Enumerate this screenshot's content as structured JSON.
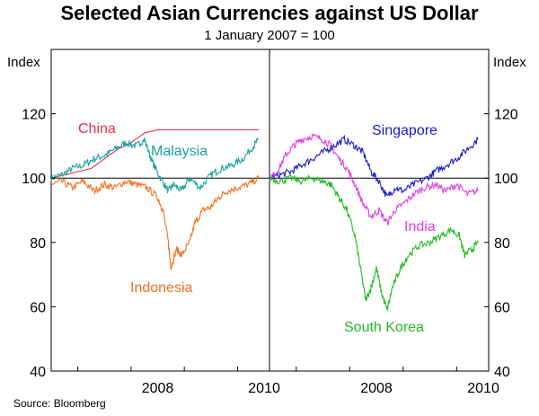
{
  "title": "Selected Asian Currencies against US Dollar",
  "subtitle": "1 January 2007 = 100",
  "source": "Source: Bloomberg",
  "chart_data": {
    "type": "line",
    "ylabel_left": "Index",
    "ylabel_right": "Index",
    "ylim": [
      40,
      140
    ],
    "yticks": [
      40,
      60,
      80,
      100,
      120
    ],
    "xlim": [
      2006.5,
      2010.6
    ],
    "xticks": [
      2008,
      2010
    ],
    "xtick_labels": [
      "2008",
      "2010"
    ],
    "reference_line": 100,
    "grid": false,
    "panels": [
      {
        "series": [
          {
            "name": "China",
            "color": "#e8304a",
            "points": [
              [
                2006.5,
                100
              ],
              [
                2006.75,
                101
              ],
              [
                2007.0,
                102
              ],
              [
                2007.25,
                103
              ],
              [
                2007.5,
                106
              ],
              [
                2007.75,
                109
              ],
              [
                2008.0,
                111
              ],
              [
                2008.25,
                114
              ],
              [
                2008.5,
                115
              ],
              [
                2008.75,
                115
              ],
              [
                2009.0,
                115
              ],
              [
                2009.5,
                115
              ],
              [
                2010.0,
                115
              ],
              [
                2010.4,
                115
              ]
            ]
          },
          {
            "name": "Malaysia",
            "color": "#1aa0a0",
            "points": [
              [
                2006.5,
                100
              ],
              [
                2006.7,
                101
              ],
              [
                2006.9,
                103
              ],
              [
                2007.1,
                104
              ],
              [
                2007.3,
                106
              ],
              [
                2007.5,
                107
              ],
              [
                2007.7,
                109
              ],
              [
                2007.9,
                111
              ],
              [
                2008.1,
                110
              ],
              [
                2008.25,
                112
              ],
              [
                2008.4,
                105
              ],
              [
                2008.55,
                100
              ],
              [
                2008.7,
                96
              ],
              [
                2008.8,
                98
              ],
              [
                2008.95,
                96
              ],
              [
                2009.1,
                100
              ],
              [
                2009.3,
                97
              ],
              [
                2009.5,
                101
              ],
              [
                2009.7,
                103
              ],
              [
                2009.9,
                104
              ],
              [
                2010.1,
                106
              ],
              [
                2010.3,
                110
              ],
              [
                2010.4,
                112
              ]
            ]
          },
          {
            "name": "Indonesia",
            "color": "#f07020",
            "points": [
              [
                2006.5,
                98
              ],
              [
                2006.7,
                99
              ],
              [
                2006.9,
                97
              ],
              [
                2007.1,
                99
              ],
              [
                2007.3,
                96
              ],
              [
                2007.5,
                98
              ],
              [
                2007.7,
                97
              ],
              [
                2007.9,
                99
              ],
              [
                2008.1,
                98
              ],
              [
                2008.3,
                97
              ],
              [
                2008.5,
                94
              ],
              [
                2008.6,
                90
              ],
              [
                2008.7,
                80
              ],
              [
                2008.75,
                72
              ],
              [
                2008.85,
                78
              ],
              [
                2008.95,
                76
              ],
              [
                2009.1,
                80
              ],
              [
                2009.2,
                86
              ],
              [
                2009.35,
                90
              ],
              [
                2009.5,
                91
              ],
              [
                2009.65,
                94
              ],
              [
                2009.8,
                96
              ],
              [
                2010.0,
                97
              ],
              [
                2010.2,
                98
              ],
              [
                2010.4,
                100
              ]
            ]
          }
        ],
        "annotations": [
          {
            "text": "China",
            "color": "#e8304a"
          },
          {
            "text": "Malaysia",
            "color": "#1aa0a0"
          },
          {
            "text": "Indonesia",
            "color": "#f07020"
          }
        ]
      },
      {
        "series": [
          {
            "name": "Singapore",
            "color": "#1a1ad0",
            "points": [
              [
                2006.5,
                100
              ],
              [
                2006.7,
                101
              ],
              [
                2006.9,
                102
              ],
              [
                2007.1,
                104
              ],
              [
                2007.3,
                106
              ],
              [
                2007.5,
                108
              ],
              [
                2007.7,
                110
              ],
              [
                2007.9,
                112
              ],
              [
                2008.1,
                110
              ],
              [
                2008.25,
                108
              ],
              [
                2008.4,
                102
              ],
              [
                2008.55,
                99
              ],
              [
                2008.7,
                94
              ],
              [
                2008.85,
                97
              ],
              [
                2009.0,
                96
              ],
              [
                2009.2,
                98
              ],
              [
                2009.45,
                100
              ],
              [
                2009.6,
                102
              ],
              [
                2009.8,
                104
              ],
              [
                2010.0,
                106
              ],
              [
                2010.2,
                109
              ],
              [
                2010.4,
                112
              ]
            ]
          },
          {
            "name": "India",
            "color": "#e040e0",
            "points": [
              [
                2006.5,
                100
              ],
              [
                2006.65,
                102
              ],
              [
                2006.8,
                107
              ],
              [
                2006.95,
                110
              ],
              [
                2007.1,
                112
              ],
              [
                2007.3,
                113
              ],
              [
                2007.5,
                112
              ],
              [
                2007.65,
                110
              ],
              [
                2007.8,
                106
              ],
              [
                2007.95,
                103
              ],
              [
                2008.1,
                98
              ],
              [
                2008.25,
                92
              ],
              [
                2008.4,
                88
              ],
              [
                2008.55,
                90
              ],
              [
                2008.7,
                86
              ],
              [
                2008.85,
                90
              ],
              [
                2009.0,
                92
              ],
              [
                2009.2,
                95
              ],
              [
                2009.4,
                97
              ],
              [
                2009.6,
                98
              ],
              [
                2009.8,
                96
              ],
              [
                2010.0,
                98
              ],
              [
                2010.2,
                95
              ],
              [
                2010.4,
                96
              ]
            ]
          },
          {
            "name": "South Korea",
            "color": "#22bb22",
            "points": [
              [
                2006.5,
                100
              ],
              [
                2006.7,
                99
              ],
              [
                2006.9,
                100
              ],
              [
                2007.1,
                99
              ],
              [
                2007.3,
                100
              ],
              [
                2007.5,
                99
              ],
              [
                2007.65,
                98
              ],
              [
                2007.8,
                94
              ],
              [
                2007.95,
                90
              ],
              [
                2008.1,
                82
              ],
              [
                2008.2,
                72
              ],
              [
                2008.3,
                62
              ],
              [
                2008.4,
                66
              ],
              [
                2008.5,
                72
              ],
              [
                2008.6,
                64
              ],
              [
                2008.7,
                59
              ],
              [
                2008.8,
                66
              ],
              [
                2008.95,
                72
              ],
              [
                2009.1,
                76
              ],
              [
                2009.3,
                79
              ],
              [
                2009.5,
                80
              ],
              [
                2009.7,
                82
              ],
              [
                2009.9,
                84
              ],
              [
                2010.05,
                82
              ],
              [
                2010.15,
                76
              ],
              [
                2010.3,
                78
              ],
              [
                2010.4,
                80
              ]
            ]
          }
        ],
        "annotations": [
          {
            "text": "Singapore",
            "color": "#1a1ad0"
          },
          {
            "text": "India",
            "color": "#e040e0"
          },
          {
            "text": "South Korea",
            "color": "#22bb22"
          }
        ]
      }
    ]
  }
}
